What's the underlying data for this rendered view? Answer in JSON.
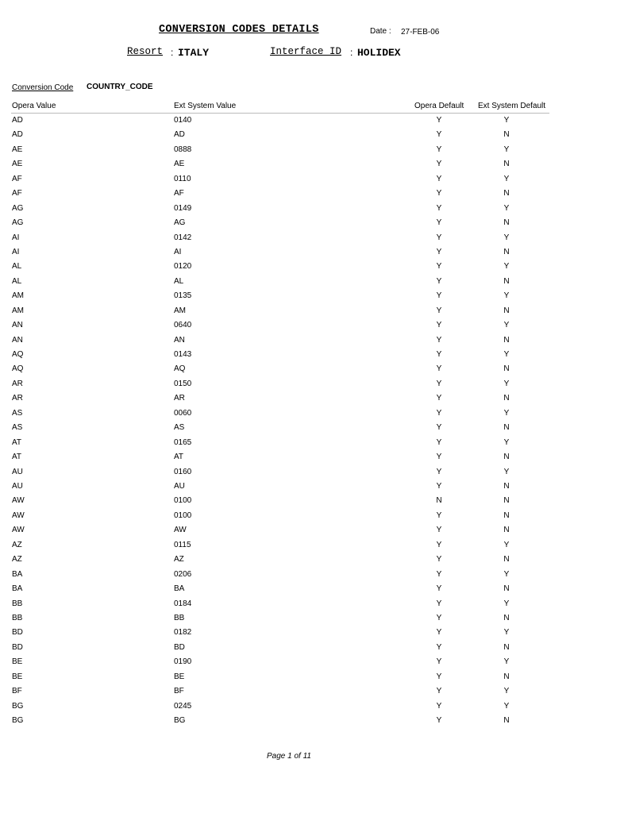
{
  "header": {
    "title": "CONVERSION CODES DETAILS",
    "date_label": "Date :",
    "date_value": "27-FEB-06",
    "resort_label": "Resort",
    "resort_sep": ":",
    "resort_value": "ITALY",
    "interface_label": "Interface ID",
    "interface_sep": ":",
    "interface_value": "HOLIDEX"
  },
  "conversion": {
    "label": "Conversion Code",
    "value": "COUNTRY_CODE"
  },
  "table": {
    "columns": [
      "Opera Value",
      "Ext System Value",
      "Opera Default",
      "Ext System Default"
    ],
    "rows": [
      [
        "AD",
        "0140",
        "Y",
        "Y"
      ],
      [
        "AD",
        "AD",
        "Y",
        "N"
      ],
      [
        "AE",
        "0888",
        "Y",
        "Y"
      ],
      [
        "AE",
        "AE",
        "Y",
        "N"
      ],
      [
        "AF",
        "0110",
        "Y",
        "Y"
      ],
      [
        "AF",
        "AF",
        "Y",
        "N"
      ],
      [
        "AG",
        "0149",
        "Y",
        "Y"
      ],
      [
        "AG",
        "AG",
        "Y",
        "N"
      ],
      [
        "AI",
        "0142",
        "Y",
        "Y"
      ],
      [
        "AI",
        "AI",
        "Y",
        "N"
      ],
      [
        "AL",
        "0120",
        "Y",
        "Y"
      ],
      [
        "AL",
        "AL",
        "Y",
        "N"
      ],
      [
        "AM",
        "0135",
        "Y",
        "Y"
      ],
      [
        "AM",
        "AM",
        "Y",
        "N"
      ],
      [
        "AN",
        "0640",
        "Y",
        "Y"
      ],
      [
        "AN",
        "AN",
        "Y",
        "N"
      ],
      [
        "AQ",
        "0143",
        "Y",
        "Y"
      ],
      [
        "AQ",
        "AQ",
        "Y",
        "N"
      ],
      [
        "AR",
        "0150",
        "Y",
        "Y"
      ],
      [
        "AR",
        "AR",
        "Y",
        "N"
      ],
      [
        "AS",
        "0060",
        "Y",
        "Y"
      ],
      [
        "AS",
        "AS",
        "Y",
        "N"
      ],
      [
        "AT",
        "0165",
        "Y",
        "Y"
      ],
      [
        "AT",
        "AT",
        "Y",
        "N"
      ],
      [
        "AU",
        "0160",
        "Y",
        "Y"
      ],
      [
        "AU",
        "AU",
        "Y",
        "N"
      ],
      [
        "AW",
        "0100",
        "N",
        "N"
      ],
      [
        "AW",
        "0100",
        "Y",
        "N"
      ],
      [
        "AW",
        "AW",
        "Y",
        "N"
      ],
      [
        "AZ",
        "0115",
        "Y",
        "Y"
      ],
      [
        "AZ",
        "AZ",
        "Y",
        "N"
      ],
      [
        "BA",
        "0206",
        "Y",
        "Y"
      ],
      [
        "BA",
        "BA",
        "Y",
        "N"
      ],
      [
        "BB",
        "0184",
        "Y",
        "Y"
      ],
      [
        "BB",
        "BB",
        "Y",
        "N"
      ],
      [
        "BD",
        "0182",
        "Y",
        "Y"
      ],
      [
        "BD",
        "BD",
        "Y",
        "N"
      ],
      [
        "BE",
        "0190",
        "Y",
        "Y"
      ],
      [
        "BE",
        "BE",
        "Y",
        "N"
      ],
      [
        "BF",
        "BF",
        "Y",
        "Y"
      ],
      [
        "BG",
        "0245",
        "Y",
        "Y"
      ],
      [
        "BG",
        "BG",
        "Y",
        "N"
      ]
    ]
  },
  "footer": {
    "page": "Page 1 of 11"
  }
}
